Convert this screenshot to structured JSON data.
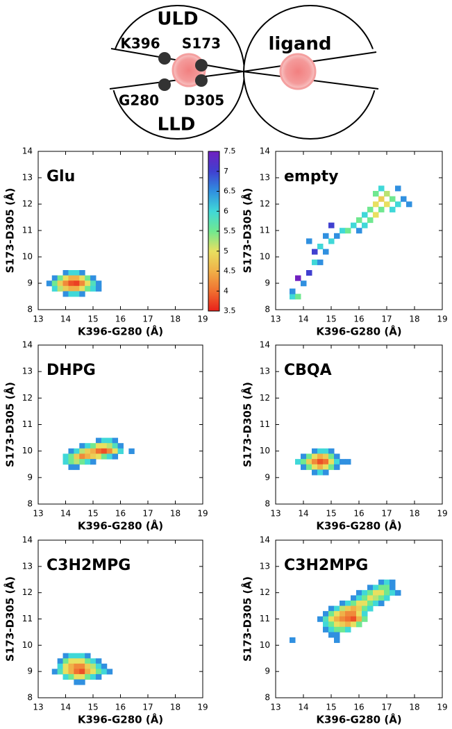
{
  "diagram": {
    "upper": "ULD",
    "lower": "LLD",
    "res1": "K396",
    "res2": "S173",
    "res3": "G280",
    "res4": "D305",
    "ligand": "ligand"
  },
  "chart_data": [
    {
      "type": "heatmap",
      "label": "Glu",
      "xlabel": "K396-G280 (Å)",
      "ylabel": "S173-D305 (Å)",
      "xlim": [
        13,
        19
      ],
      "ylim": [
        8,
        14
      ],
      "xticks": [
        13,
        14,
        15,
        16,
        17,
        18,
        19
      ],
      "yticks": [
        8,
        9,
        10,
        11,
        12,
        13,
        14
      ],
      "colorbar": {
        "lim": [
          3.5,
          7.5
        ],
        "ticks": [
          3.5,
          4,
          4.5,
          5,
          5.5,
          6,
          6.5,
          7,
          7.5
        ],
        "colors": [
          "#e8201a",
          "#f07030",
          "#f0b048",
          "#e8e060",
          "#70e890",
          "#40d8d8",
          "#3090e0",
          "#4040d0",
          "#7020c0"
        ]
      },
      "x": [
        14.0,
        14.2,
        14.4,
        14.6,
        13.6,
        13.8,
        14.0,
        14.2,
        14.4,
        14.6,
        14.8,
        15.0,
        13.4,
        13.6,
        13.8,
        14.0,
        14.2,
        14.4,
        14.6,
        14.8,
        15.0,
        15.2,
        13.6,
        13.8,
        14.0,
        14.2,
        14.4,
        14.6,
        14.8,
        15.0,
        15.2,
        14.0,
        14.2,
        14.4,
        14.6
      ],
      "y": [
        9.4,
        9.4,
        9.4,
        9.4,
        9.2,
        9.2,
        9.2,
        9.2,
        9.2,
        9.2,
        9.2,
        9.2,
        9.0,
        9.0,
        9.0,
        9.0,
        9.0,
        9.0,
        9.0,
        9.0,
        9.0,
        9.0,
        8.8,
        8.8,
        8.8,
        8.8,
        8.8,
        8.8,
        8.8,
        8.8,
        8.8,
        8.6,
        8.6,
        8.6,
        8.6
      ],
      "values": [
        6.5,
        6,
        6,
        6.5,
        6.5,
        5.5,
        5,
        4.5,
        4.5,
        5,
        5.5,
        6.5,
        6.5,
        5.5,
        4.8,
        4.2,
        3.8,
        3.7,
        4.2,
        5,
        5.8,
        6.5,
        6,
        5.2,
        4.8,
        4.5,
        4.5,
        5,
        5.5,
        6,
        6.5,
        6.5,
        6,
        6,
        6.5
      ]
    },
    {
      "type": "heatmap",
      "label": "empty",
      "xlabel": "K396-G280 (Å)",
      "ylabel": "S173-D305 (Å)",
      "xlim": [
        13,
        19
      ],
      "ylim": [
        8,
        14
      ],
      "xticks": [
        13,
        14,
        15,
        16,
        17,
        18,
        19
      ],
      "yticks": [
        8,
        9,
        10,
        11,
        12,
        13,
        14
      ],
      "x": [
        13.6,
        13.8,
        13.6,
        14.0,
        14.2,
        14.4,
        14.6,
        14.4,
        14.2,
        14.6,
        14.8,
        15.0,
        15.2,
        15.4,
        15.6,
        15.8,
        16.0,
        16.0,
        16.2,
        16.2,
        16.4,
        16.4,
        16.6,
        16.6,
        16.8,
        16.8,
        17.0,
        17.0,
        17.2,
        17.4,
        17.2,
        16.8,
        17.6,
        17.8,
        16.6,
        17.4,
        13.8,
        15.0,
        14.8
      ],
      "y": [
        8.5,
        8.5,
        8.7,
        9.0,
        9.4,
        9.8,
        9.8,
        10.2,
        10.6,
        10.4,
        10.8,
        10.6,
        10.8,
        11.0,
        11.0,
        11.2,
        11.0,
        11.4,
        11.2,
        11.6,
        11.4,
        11.8,
        11.6,
        12.0,
        11.8,
        12.2,
        12.0,
        12.4,
        12.2,
        12.0,
        11.8,
        12.6,
        12.2,
        12.0,
        12.4,
        12.6,
        9.2,
        11.2,
        10.2
      ],
      "values": [
        6,
        5.5,
        6.5,
        6.5,
        7,
        6,
        6.5,
        7,
        6.5,
        6,
        6.5,
        6,
        6.5,
        6,
        5.5,
        6,
        6.5,
        5.5,
        6,
        6,
        5.5,
        5.5,
        5,
        5,
        5.5,
        4.8,
        5,
        5.2,
        5.5,
        6,
        6,
        6,
        6.5,
        6.5,
        5.5,
        6.5,
        7.5,
        7,
        6.5
      ]
    },
    {
      "type": "heatmap",
      "label": "DHPG",
      "xlabel": "K396-G280 (Å)",
      "ylabel": "S173-D305 (Å)",
      "xlim": [
        13,
        19
      ],
      "ylim": [
        8,
        14
      ],
      "xticks": [
        13,
        14,
        15,
        16,
        17,
        18,
        19
      ],
      "yticks": [
        8,
        9,
        10,
        11,
        12,
        13,
        14
      ],
      "x": [
        15.2,
        15.4,
        15.6,
        15.8,
        14.6,
        14.8,
        15.0,
        15.2,
        15.4,
        15.6,
        15.8,
        16.0,
        14.2,
        14.4,
        14.6,
        14.8,
        15.0,
        15.2,
        15.4,
        15.6,
        15.8,
        16.0,
        16.4,
        14.0,
        14.2,
        14.4,
        14.6,
        14.8,
        15.0,
        15.2,
        15.4,
        15.6,
        15.8,
        14.0,
        14.2,
        14.4,
        14.6,
        14.8,
        15.0,
        14.2,
        14.4
      ],
      "y": [
        10.4,
        10.4,
        10.4,
        10.4,
        10.2,
        10.2,
        10.2,
        10.2,
        10.2,
        10.2,
        10.2,
        10.2,
        10.0,
        10.0,
        10.0,
        10.0,
        10.0,
        10.0,
        10.0,
        10.0,
        10.0,
        10.0,
        10.0,
        9.8,
        9.8,
        9.8,
        9.8,
        9.8,
        9.8,
        9.8,
        9.8,
        9.8,
        9.8,
        9.6,
        9.6,
        9.6,
        9.6,
        9.6,
        9.6,
        9.4,
        9.4
      ],
      "values": [
        6.5,
        6,
        6,
        6.5,
        6.5,
        6,
        5.5,
        5,
        5,
        5.2,
        5.8,
        6.5,
        6.5,
        6,
        5.2,
        4.8,
        4.5,
        4,
        3.8,
        4.2,
        5,
        6,
        6.5,
        6,
        5.5,
        4.8,
        4.2,
        4.5,
        4.8,
        5,
        5.5,
        6,
        6.5,
        6,
        5.5,
        5.2,
        5.5,
        6,
        6.5,
        6.5,
        6.5
      ]
    },
    {
      "type": "heatmap",
      "label": "CBQA",
      "xlabel": "K396-G280 (Å)",
      "ylabel": "S173-D305 (Å)",
      "xlim": [
        13,
        19
      ],
      "ylim": [
        8,
        14
      ],
      "xticks": [
        13,
        14,
        15,
        16,
        17,
        18,
        19
      ],
      "yticks": [
        8,
        9,
        10,
        11,
        12,
        13,
        14
      ],
      "x": [
        14.4,
        14.6,
        14.8,
        15.0,
        14.0,
        14.2,
        14.4,
        14.6,
        14.8,
        15.0,
        15.2,
        13.8,
        14.0,
        14.2,
        14.4,
        14.6,
        14.8,
        15.0,
        15.2,
        15.4,
        15.6,
        14.0,
        14.2,
        14.4,
        14.6,
        14.8,
        15.0,
        15.2,
        14.4,
        14.6,
        14.8
      ],
      "y": [
        10.0,
        10.0,
        10.0,
        10.0,
        9.8,
        9.8,
        9.8,
        9.8,
        9.8,
        9.8,
        9.8,
        9.6,
        9.6,
        9.6,
        9.6,
        9.6,
        9.6,
        9.6,
        9.6,
        9.6,
        9.6,
        9.4,
        9.4,
        9.4,
        9.4,
        9.4,
        9.4,
        9.4,
        9.2,
        9.2,
        9.2
      ],
      "values": [
        6.5,
        6,
        6,
        6.5,
        6.5,
        5.5,
        5,
        4.5,
        4.8,
        5.5,
        6.5,
        6,
        5.5,
        4.8,
        4.2,
        3.8,
        4,
        5,
        6,
        6.5,
        6.5,
        6.5,
        5.5,
        5,
        4.5,
        5,
        5.5,
        6.5,
        6.5,
        6,
        6.5
      ]
    },
    {
      "type": "heatmap",
      "label": "C3H2MPG",
      "xlabel": "K396-G280 (Å)",
      "ylabel": "S173-D305 (Å)",
      "xlim": [
        13,
        19
      ],
      "ylim": [
        8,
        14
      ],
      "xticks": [
        13,
        14,
        15,
        16,
        17,
        18,
        19
      ],
      "yticks": [
        8,
        9,
        10,
        11,
        12,
        13,
        14
      ],
      "x": [
        14.0,
        14.2,
        14.4,
        14.6,
        14.8,
        13.8,
        14.0,
        14.2,
        14.4,
        14.6,
        14.8,
        15.0,
        15.2,
        13.8,
        14.0,
        14.2,
        14.4,
        14.6,
        14.8,
        15.0,
        15.2,
        15.4,
        13.6,
        13.8,
        14.0,
        14.2,
        14.4,
        14.6,
        14.8,
        15.0,
        15.2,
        15.4,
        15.6,
        14.0,
        14.2,
        14.4,
        14.6,
        14.8,
        15.0,
        15.2,
        14.4,
        14.6
      ],
      "y": [
        9.6,
        9.6,
        9.6,
        9.6,
        9.6,
        9.4,
        9.4,
        9.4,
        9.4,
        9.4,
        9.4,
        9.4,
        9.4,
        9.2,
        9.2,
        9.2,
        9.2,
        9.2,
        9.2,
        9.2,
        9.2,
        9.2,
        9.0,
        9.0,
        9.0,
        9.0,
        9.0,
        9.0,
        9.0,
        9.0,
        9.0,
        9.0,
        9.0,
        8.8,
        8.8,
        8.8,
        8.8,
        8.8,
        8.8,
        8.8,
        8.6,
        8.6
      ],
      "values": [
        6.5,
        6,
        6,
        6,
        6.5,
        6.5,
        5.5,
        5,
        5,
        5,
        5.5,
        6,
        6.5,
        6,
        5,
        4.5,
        4.2,
        4.2,
        4.8,
        5.2,
        6,
        6.5,
        6.5,
        5.8,
        5,
        4.5,
        4,
        3.8,
        4.5,
        5,
        5.5,
        6,
        6.5,
        6,
        5.5,
        5,
        5,
        5.5,
        6,
        6.5,
        6.5,
        6.5
      ]
    },
    {
      "type": "heatmap",
      "label": "C3H2MPG",
      "xlabel": "K396-G280 (Å)",
      "ylabel": "S173-D305 (Å)",
      "xlim": [
        13,
        19
      ],
      "ylim": [
        8,
        14
      ],
      "xticks": [
        13,
        14,
        15,
        16,
        17,
        18,
        19
      ],
      "yticks": [
        8,
        9,
        10,
        11,
        12,
        13,
        14
      ],
      "x": [
        16.8,
        17.0,
        17.2,
        16.4,
        16.6,
        16.8,
        17.0,
        17.2,
        16.0,
        16.2,
        16.4,
        16.6,
        16.8,
        17.0,
        17.2,
        17.4,
        15.8,
        16.0,
        16.2,
        16.4,
        16.6,
        16.8,
        17.0,
        15.4,
        15.6,
        15.8,
        16.0,
        16.2,
        16.4,
        16.6,
        16.8,
        15.0,
        15.2,
        15.4,
        15.6,
        15.8,
        16.0,
        16.2,
        16.4,
        14.8,
        15.0,
        15.2,
        15.4,
        15.6,
        15.8,
        16.0,
        16.2,
        14.6,
        14.8,
        15.0,
        15.2,
        15.4,
        15.6,
        15.8,
        16.0,
        16.2,
        14.8,
        15.0,
        15.2,
        15.4,
        15.6,
        15.8,
        16.0,
        14.8,
        15.0,
        15.2,
        15.4,
        15.6,
        15.0,
        15.2,
        13.6,
        15.2
      ],
      "y": [
        12.4,
        12.4,
        12.4,
        12.2,
        12.2,
        12.2,
        12.2,
        12.2,
        12.0,
        12.0,
        12.0,
        12.0,
        12.0,
        12.0,
        12.0,
        12.0,
        11.8,
        11.8,
        11.8,
        11.8,
        11.8,
        11.8,
        11.8,
        11.6,
        11.6,
        11.6,
        11.6,
        11.6,
        11.6,
        11.6,
        11.6,
        11.4,
        11.4,
        11.4,
        11.4,
        11.4,
        11.4,
        11.4,
        11.4,
        11.2,
        11.2,
        11.2,
        11.2,
        11.2,
        11.2,
        11.2,
        11.2,
        11.0,
        11.0,
        11.0,
        11.0,
        11.0,
        11.0,
        11.0,
        11.0,
        11.0,
        10.8,
        10.8,
        10.8,
        10.8,
        10.8,
        10.8,
        10.8,
        10.6,
        10.6,
        10.6,
        10.6,
        10.6,
        10.4,
        10.4,
        10.2,
        10.2
      ],
      "values": [
        6.5,
        6,
        6.5,
        6.5,
        6,
        5.5,
        5.5,
        6.5,
        6.5,
        6,
        5.5,
        5,
        5,
        5.5,
        6,
        6.5,
        6.5,
        6,
        5.5,
        5,
        5.2,
        5.5,
        6,
        6.5,
        6,
        5.5,
        5,
        5,
        5.5,
        6,
        6.5,
        6.5,
        6,
        5.2,
        4.8,
        4.5,
        4.8,
        5.5,
        6,
        6.5,
        5.5,
        5,
        4.5,
        4.2,
        4.2,
        5,
        6,
        6.5,
        5.8,
        5,
        4.5,
        4.2,
        4,
        3.8,
        4.5,
        5.5,
        6,
        5.5,
        5,
        4.8,
        4.5,
        5,
        5.5,
        6.5,
        6,
        5.5,
        5.5,
        6,
        6.5,
        6.5,
        6.5,
        6.5
      ]
    }
  ]
}
